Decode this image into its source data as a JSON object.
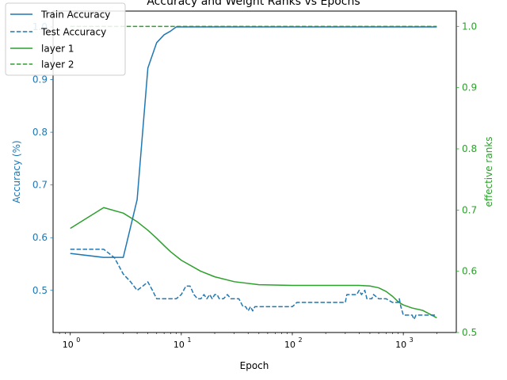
{
  "chart_data": {
    "type": "line",
    "title": "Accuracy and Weight Ranks vs Epochs",
    "xlabel": "Epoch",
    "ylabel_left": "Accuracy (%)",
    "ylabel_right": "effective ranks",
    "x_scale": "log",
    "xlim": [
      0.7,
      3000
    ],
    "ylim_left": [
      0.42,
      1.03
    ],
    "ylim_right": [
      0.5,
      1.025
    ],
    "x_ticks": [
      1,
      10,
      100,
      1000
    ],
    "x_tick_labels": [
      "10",
      "10",
      "10",
      "10"
    ],
    "x_tick_exponents": [
      "0",
      "1",
      "2",
      "3"
    ],
    "y_ticks_left": [
      0.5,
      0.6,
      0.7,
      0.8,
      0.9,
      1.0
    ],
    "y_tick_labels_left": [
      "0.5",
      "0.6",
      "0.7",
      "0.8",
      "0.9",
      "1.0"
    ],
    "y_ticks_right": [
      0.5,
      0.6,
      0.7,
      0.8,
      0.9,
      1.0
    ],
    "y_tick_labels_right": [
      "0.5",
      "0.6",
      "0.7",
      "0.8",
      "0.9",
      "1.0"
    ],
    "grid": false,
    "legend_position": "top-left",
    "series": [
      {
        "name": "Train Accuracy",
        "axis": "left",
        "color": "#1f77b4",
        "dash": "solid",
        "x": [
          1,
          2,
          3,
          4,
          5,
          6,
          7,
          8,
          9,
          10,
          20,
          50,
          100,
          200,
          500,
          1000,
          2000
        ],
        "y": [
          0.57,
          0.5625,
          0.5625,
          0.672,
          0.922,
          0.97,
          0.985,
          0.992,
          1.0,
          1.0,
          1.0,
          1.0,
          1.0,
          1.0,
          1.0,
          1.0,
          1.0
        ]
      },
      {
        "name": "Test Accuracy",
        "axis": "left",
        "color": "#1f77b4",
        "dash": "dashed",
        "x": [
          1,
          2,
          2.5,
          3,
          3.5,
          4,
          4.5,
          5,
          5.5,
          6,
          7,
          8,
          9,
          10,
          11,
          12,
          13,
          14,
          15,
          16,
          17,
          18,
          19,
          20,
          21,
          22,
          24,
          26,
          28,
          30,
          33,
          36,
          38,
          40,
          42,
          44,
          46,
          50,
          60,
          80,
          100,
          110,
          130,
          150,
          200,
          250,
          300,
          310,
          380,
          400,
          420,
          450,
          470,
          520,
          540,
          600,
          700,
          800,
          900,
          920,
          950,
          1000,
          1050,
          1100,
          1200,
          1250,
          1300,
          1500,
          1700,
          2000
        ],
        "y": [
          0.578,
          0.578,
          0.562,
          0.531,
          0.516,
          0.5,
          0.508,
          0.516,
          0.5,
          0.484,
          0.484,
          0.484,
          0.484,
          0.492,
          0.508,
          0.508,
          0.492,
          0.484,
          0.484,
          0.492,
          0.484,
          0.492,
          0.484,
          0.492,
          0.492,
          0.484,
          0.484,
          0.492,
          0.484,
          0.484,
          0.484,
          0.469,
          0.469,
          0.461,
          0.469,
          0.461,
          0.469,
          0.469,
          0.469,
          0.469,
          0.469,
          0.477,
          0.477,
          0.477,
          0.477,
          0.477,
          0.477,
          0.492,
          0.492,
          0.5,
          0.492,
          0.5,
          0.484,
          0.484,
          0.492,
          0.484,
          0.484,
          0.477,
          0.477,
          0.484,
          0.469,
          0.453,
          0.453,
          0.453,
          0.453,
          0.445,
          0.453,
          0.453,
          0.453,
          0.453
        ]
      },
      {
        "name": "layer 1",
        "axis": "right",
        "color": "#2ca02c",
        "dash": "solid",
        "x": [
          1,
          2,
          3,
          4,
          5,
          6,
          7,
          8,
          10,
          15,
          20,
          30,
          50,
          100,
          200,
          300,
          400,
          500,
          600,
          700,
          800,
          900,
          1000,
          1200,
          1500,
          2000
        ],
        "y": [
          0.67,
          0.704,
          0.695,
          0.681,
          0.667,
          0.654,
          0.642,
          0.632,
          0.618,
          0.6,
          0.591,
          0.583,
          0.578,
          0.577,
          0.577,
          0.577,
          0.577,
          0.576,
          0.573,
          0.567,
          0.559,
          0.55,
          0.545,
          0.54,
          0.536,
          0.524
        ]
      },
      {
        "name": "layer 2",
        "axis": "right",
        "color": "#2ca02c",
        "dash": "dashed",
        "x": [
          1,
          2000
        ],
        "y": [
          1.0,
          1.0
        ]
      }
    ]
  }
}
